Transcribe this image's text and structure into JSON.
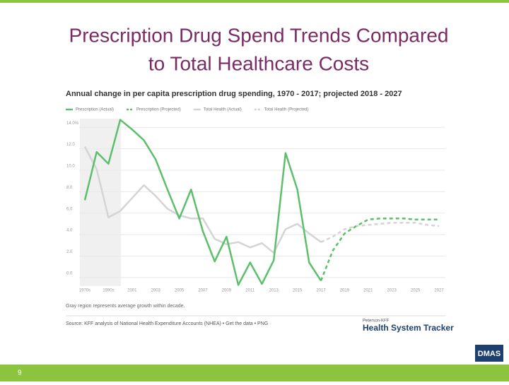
{
  "slide": {
    "title_line1": "Prescription Drug Spend Trends Compared",
    "title_line2": "to Total Healthcare Costs",
    "page_number": "9",
    "logo": "DMAS"
  },
  "chart_data": {
    "type": "line",
    "title": "Annual change in per capita prescription drug spending, 1970 - 2017; projected 2018 - 2027",
    "categories": [
      "1970s",
      null,
      "1990s",
      null,
      "2001",
      null,
      "2003",
      null,
      "2005",
      null,
      "2007",
      null,
      "2009",
      null,
      "2011",
      null,
      "2013",
      null,
      "2015",
      null,
      "2017",
      null,
      "2019",
      null,
      "2021",
      null,
      "2023",
      null,
      "2025",
      null,
      "2027"
    ],
    "series": [
      {
        "name": "Prescription (Actual)",
        "color": "#5cbf6b",
        "dashed": false,
        "values": [
          7.2,
          11.7,
          10.6,
          14.7,
          13.8,
          12.8,
          11.0,
          8.2,
          5.5,
          8.2,
          4.3,
          1.5,
          3.8,
          -0.7,
          1.4,
          -0.6,
          1.6,
          11.6,
          8.2,
          1.4,
          -0.3,
          null,
          null,
          null,
          null,
          null,
          null,
          null,
          null,
          null,
          null
        ]
      },
      {
        "name": "Prescription (Projected)",
        "color": "#5cbf6b",
        "dashed": true,
        "values": [
          null,
          null,
          null,
          null,
          null,
          null,
          null,
          null,
          null,
          null,
          null,
          null,
          null,
          null,
          null,
          null,
          null,
          null,
          null,
          null,
          -0.3,
          2.5,
          4.1,
          4.8,
          5.4,
          5.5,
          5.5,
          5.5,
          5.4,
          5.4,
          5.4
        ]
      },
      {
        "name": "Total Health (Actual)",
        "color": "#d4d4d4",
        "dashed": false,
        "values": [
          12.2,
          10.1,
          5.6,
          6.2,
          7.4,
          8.6,
          7.6,
          6.4,
          5.8,
          5.5,
          5.5,
          3.6,
          3.1,
          3.3,
          2.8,
          3.2,
          2.3,
          4.5,
          5.0,
          4.1,
          3.3,
          null,
          null,
          null,
          null,
          null,
          null,
          null,
          null,
          null,
          null
        ]
      },
      {
        "name": "Total Health (Projected)",
        "color": "#d4d4d4",
        "dashed": true,
        "values": [
          null,
          null,
          null,
          null,
          null,
          null,
          null,
          null,
          null,
          null,
          null,
          null,
          null,
          null,
          null,
          null,
          null,
          null,
          null,
          null,
          3.3,
          3.8,
          4.5,
          4.8,
          4.9,
          5.0,
          5.1,
          5.1,
          5.1,
          4.9,
          4.8
        ]
      }
    ],
    "ylim": [
      -1,
      15
    ],
    "yticks": [
      {
        "value": 0,
        "label": "0.0"
      },
      {
        "value": 2,
        "label": "2.0"
      },
      {
        "value": 4,
        "label": "4.0"
      },
      {
        "value": 6,
        "label": "6.0"
      },
      {
        "value": 8,
        "label": "8.0"
      },
      {
        "value": 10,
        "label": "10.0"
      },
      {
        "value": 12,
        "label": "12.0"
      },
      {
        "value": 14,
        "label": "14.0%"
      }
    ],
    "grid": true,
    "note": "Gray region represents average growth within decade.",
    "source": "Source: KFF analysis of National Health Expenditure Accounts (NHEA) • Get the data • PNG",
    "brand_small": "Peterson-KFF",
    "brand": "Health System Tracker"
  }
}
